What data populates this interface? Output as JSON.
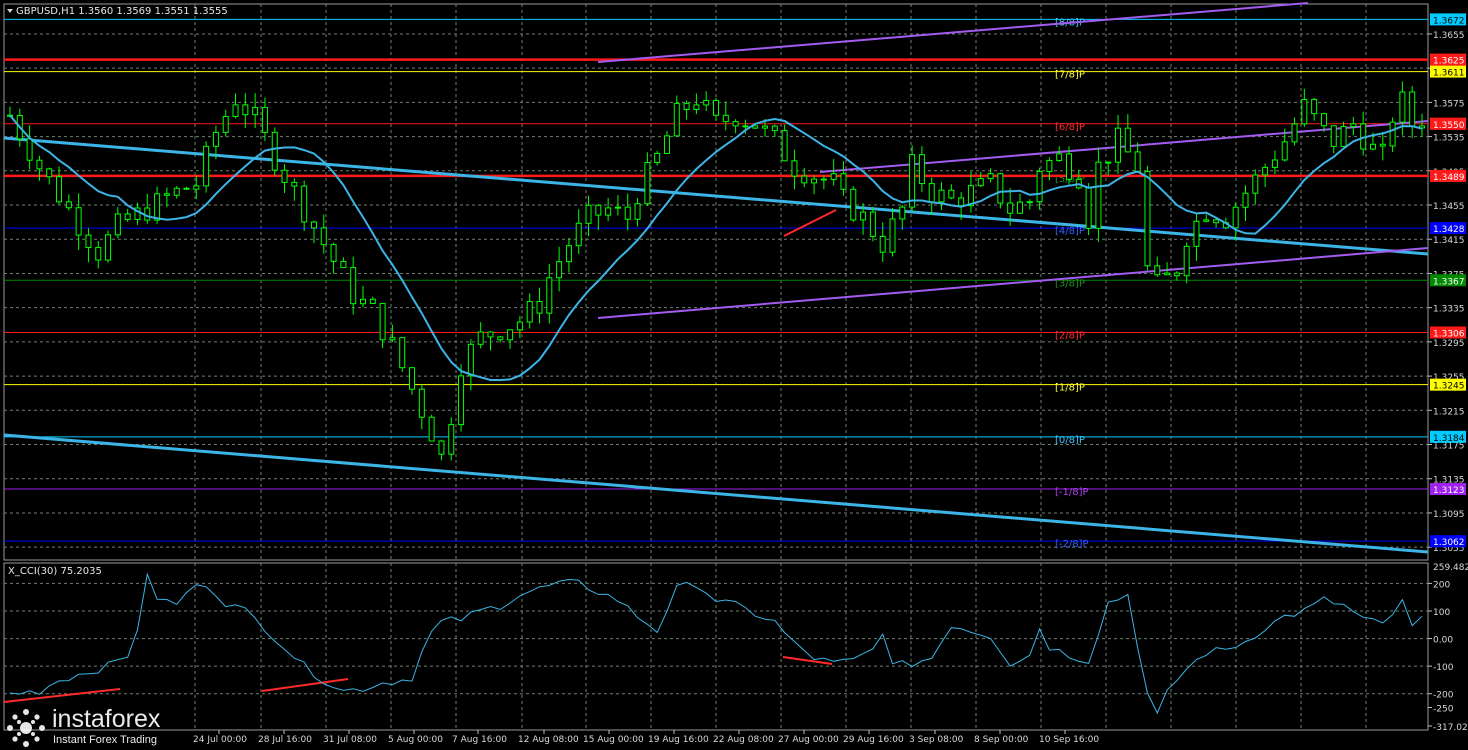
{
  "window": {
    "symbol_header": "GBPUSD,H1  1.3560 1.3569 1.3551 1.3555",
    "indicator_header": "X_CCI(30) 75.2035"
  },
  "colors": {
    "background": "#000000",
    "grid": "#6f7f6f",
    "candles": "#00ff00",
    "ma_line": "#3cb4e6",
    "trend_channel": "#3cb4e6",
    "purple_channel": "#a35cf0",
    "resistance": "#ff1a1a",
    "divergence": "#ff2a2a",
    "cci_line": "#3cb4e6"
  },
  "price_axis": {
    "ticks": [
      "1.3655",
      "1.3615",
      "1.3575",
      "1.3535",
      "1.3495",
      "1.3455",
      "1.3415",
      "1.3375",
      "1.3335",
      "1.3295",
      "1.3255",
      "1.3215",
      "1.3175",
      "1.3135",
      "1.3095",
      "1.3055"
    ],
    "current_price_tag": "1.3550"
  },
  "murray_levels": [
    {
      "label": "[8/8]P",
      "price": "1.3672",
      "color": "#00ccff",
      "text_color": "#39c5ff"
    },
    {
      "label": "[7/8]P",
      "price": "1.3611",
      "color": "#ffff00",
      "text_color": "#ffff3c"
    },
    {
      "label": "[6/8]P",
      "price": "1.3550",
      "color": "#ff1a1a",
      "text_color": "#ff2a2a"
    },
    {
      "label": "[5/8]P",
      "price": "1.3489",
      "color": "#008a00",
      "text_color": "#1d8f1d"
    },
    {
      "label": "[4/8]P",
      "price": "1.3428",
      "color": "#0000ff",
      "text_color": "#3060ff"
    },
    {
      "label": "[3/8]P",
      "price": "1.3367",
      "color": "#008a00",
      "text_color": "#1d8f1d"
    },
    {
      "label": "[2/8]P",
      "price": "1.3306",
      "color": "#ff1a1a",
      "text_color": "#ff2a2a"
    },
    {
      "label": "[1/8]P",
      "price": "1.3245",
      "color": "#ffff00",
      "text_color": "#ffff3c"
    },
    {
      "label": "[0/8]P",
      "price": "1.3184",
      "color": "#00ccff",
      "text_color": "#39c5ff"
    },
    {
      "label": "[-1/8]P",
      "price": "1.3123",
      "color": "#a020f0",
      "text_color": "#b040f0"
    },
    {
      "label": "[-2/8]P",
      "price": "1.3062",
      "color": "#0000ff",
      "text_color": "#3060ff"
    }
  ],
  "resistance_levels": [
    {
      "price": "1.3625"
    },
    {
      "price": "1.3489"
    }
  ],
  "cci_axis": {
    "ticks": [
      "200",
      "100",
      "0.00",
      "-100",
      "-200",
      "-250",
      "-317.0211"
    ],
    "top_label": "259.4821"
  },
  "time_axis": {
    "labels": [
      "24 Jul 00:00",
      "28 Jul 16:00",
      "31 Jul 08:00",
      "5 Aug 00:00",
      "7 Aug 16:00",
      "12 Aug 08:00",
      "15 Aug 00:00",
      "19 Aug 16:00",
      "22 Aug 08:00",
      "27 Aug 00:00",
      "29 Aug 16:00",
      "3 Sep 08:00",
      "8 Sep 00:00",
      "10 Sep 16:00"
    ]
  },
  "watermark": {
    "brand": "instaforex",
    "tagline": "Instant Forex Trading"
  },
  "chart_data": {
    "type": "candlestick",
    "symbol": "GBPUSD",
    "timeframe": "H1",
    "last_bar": {
      "open": 1.356,
      "high": 1.3569,
      "low": 1.3551,
      "close": 1.3555
    },
    "y_range": [
      1.304,
      1.369
    ],
    "price_path": [
      [
        0,
        1.356
      ],
      [
        3,
        1.35
      ],
      [
        6,
        1.345
      ],
      [
        9,
        1.34
      ],
      [
        11,
        1.343
      ],
      [
        14,
        1.345
      ],
      [
        17,
        1.347
      ],
      [
        19,
        1.348
      ],
      [
        21,
        1.354
      ],
      [
        23,
        1.358
      ],
      [
        25,
        1.3555
      ],
      [
        27,
        1.351
      ],
      [
        29,
        1.347
      ],
      [
        31,
        1.343
      ],
      [
        33,
        1.339
      ],
      [
        35,
        1.335
      ],
      [
        37,
        1.333
      ],
      [
        39,
        1.329
      ],
      [
        41,
        1.324
      ],
      [
        43,
        1.319
      ],
      [
        44,
        1.316
      ],
      [
        45,
        1.321
      ],
      [
        46,
        1.327
      ],
      [
        48,
        1.33
      ],
      [
        50,
        1.331
      ],
      [
        52,
        1.332
      ],
      [
        54,
        1.334
      ],
      [
        55,
        1.337
      ],
      [
        57,
        1.341
      ],
      [
        59,
        1.344
      ],
      [
        61,
        1.345
      ],
      [
        63,
        1.344
      ],
      [
        64,
        1.347
      ],
      [
        66,
        1.351
      ],
      [
        68,
        1.356
      ],
      [
        70,
        1.358
      ],
      [
        72,
        1.355
      ],
      [
        74,
        1.356
      ],
      [
        76,
        1.355
      ],
      [
        78,
        1.353
      ],
      [
        80,
        1.35
      ],
      [
        82,
        1.349
      ],
      [
        84,
        1.348
      ],
      [
        85,
        1.346
      ],
      [
        87,
        1.344
      ],
      [
        89,
        1.341
      ],
      [
        91,
        1.345
      ],
      [
        92,
        1.35
      ],
      [
        94,
        1.347
      ],
      [
        96,
        1.346
      ],
      [
        98,
        1.347
      ],
      [
        100,
        1.348
      ],
      [
        102,
        1.345
      ],
      [
        104,
        1.346
      ],
      [
        105,
        1.35
      ],
      [
        107,
        1.351
      ],
      [
        109,
        1.349
      ],
      [
        110,
        1.344
      ],
      [
        111,
        1.35
      ],
      [
        113,
        1.353
      ],
      [
        115,
        1.35
      ],
      [
        116,
        1.338
      ],
      [
        117,
        1.336
      ],
      [
        119,
        1.338
      ],
      [
        120,
        1.342
      ],
      [
        122,
        1.345
      ],
      [
        124,
        1.344
      ],
      [
        126,
        1.347
      ],
      [
        128,
        1.35
      ],
      [
        130,
        1.353
      ],
      [
        132,
        1.357
      ],
      [
        134,
        1.354
      ],
      [
        135,
        1.353
      ],
      [
        137,
        1.355
      ],
      [
        139,
        1.352
      ],
      [
        140,
        1.351
      ],
      [
        141,
        1.356
      ],
      [
        142,
        1.3575
      ],
      [
        143,
        1.355
      ],
      [
        144,
        1.3555
      ]
    ],
    "cci": {
      "name": "X_CCI(30)",
      "current": 75.2035,
      "range": [
        -317.0211,
        259.4821
      ],
      "path": [
        [
          0,
          -200
        ],
        [
          3,
          -190
        ],
        [
          5,
          -150
        ],
        [
          8,
          -120
        ],
        [
          10,
          -100
        ],
        [
          12,
          -60
        ],
        [
          13,
          40
        ],
        [
          14,
          220
        ],
        [
          15,
          150
        ],
        [
          17,
          120
        ],
        [
          18,
          170
        ],
        [
          20,
          200
        ],
        [
          22,
          130
        ],
        [
          24,
          100
        ],
        [
          26,
          40
        ],
        [
          28,
          -30
        ],
        [
          30,
          -100
        ],
        [
          32,
          -150
        ],
        [
          34,
          -190
        ],
        [
          36,
          -180
        ],
        [
          38,
          -160
        ],
        [
          40,
          -150
        ],
        [
          41,
          -140
        ],
        [
          42,
          -50
        ],
        [
          43,
          20
        ],
        [
          44,
          60
        ],
        [
          46,
          70
        ],
        [
          48,
          100
        ],
        [
          50,
          120
        ],
        [
          52,
          160
        ],
        [
          54,
          180
        ],
        [
          56,
          200
        ],
        [
          58,
          200
        ],
        [
          60,
          170
        ],
        [
          62,
          140
        ],
        [
          64,
          80
        ],
        [
          66,
          30
        ],
        [
          68,
          180
        ],
        [
          70,
          200
        ],
        [
          72,
          140
        ],
        [
          74,
          120
        ],
        [
          76,
          90
        ],
        [
          78,
          60
        ],
        [
          80,
          -20
        ],
        [
          82,
          -70
        ],
        [
          84,
          -90
        ],
        [
          86,
          -80
        ],
        [
          88,
          -40
        ],
        [
          89,
          30
        ],
        [
          90,
          -100
        ],
        [
          92,
          -90
        ],
        [
          94,
          -70
        ],
        [
          96,
          50
        ],
        [
          98,
          30
        ],
        [
          100,
          10
        ],
        [
          102,
          -90
        ],
        [
          104,
          -60
        ],
        [
          105,
          40
        ],
        [
          106,
          -30
        ],
        [
          108,
          -60
        ],
        [
          110,
          -80
        ],
        [
          112,
          130
        ],
        [
          114,
          160
        ],
        [
          116,
          -200
        ],
        [
          117,
          -280
        ],
        [
          118,
          -200
        ],
        [
          119,
          -150
        ],
        [
          120,
          -110
        ],
        [
          121,
          -80
        ],
        [
          122,
          -50
        ],
        [
          124,
          -40
        ],
        [
          126,
          -10
        ],
        [
          128,
          40
        ],
        [
          130,
          80
        ],
        [
          132,
          100
        ],
        [
          134,
          140
        ],
        [
          136,
          120
        ],
        [
          138,
          70
        ],
        [
          140,
          50
        ],
        [
          141,
          90
        ],
        [
          142,
          130
        ],
        [
          143,
          40
        ],
        [
          144,
          75
        ]
      ]
    }
  }
}
